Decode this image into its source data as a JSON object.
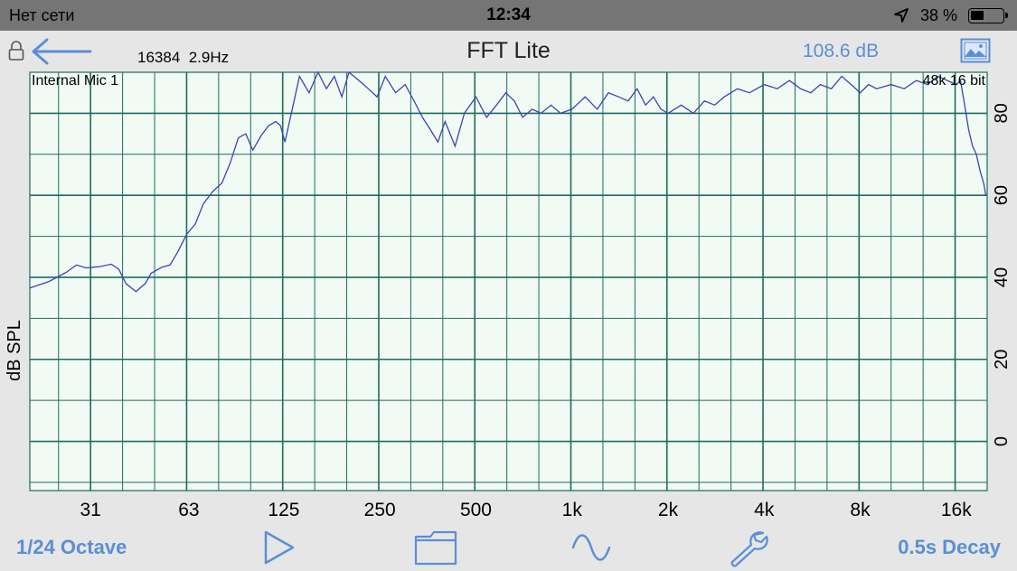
{
  "status_bar": {
    "carrier": "Нет сети",
    "time": "12:34",
    "battery_text": "38 %",
    "icons": [
      "location-arrow-icon",
      "battery-icon"
    ]
  },
  "header": {
    "title": "FFT Lite",
    "fft_info": "16384  2.9Hz",
    "level": "108.6 dB",
    "icons": [
      "lock-icon",
      "back-arrow-icon",
      "image-icon"
    ],
    "accent_color": "#5a8fd6"
  },
  "chart_data": {
    "type": "line",
    "title": "",
    "ylabel": "dB SPL",
    "xlabel": "",
    "x_scale": "log",
    "xlim": [
      20,
      20000
    ],
    "ylim": [
      -12,
      90
    ],
    "x_ticks": [
      31,
      63,
      125,
      250,
      500,
      1000,
      2000,
      4000,
      8000,
      16000
    ],
    "x_tick_labels": [
      "31",
      "63",
      "125",
      "250",
      "500",
      "1k",
      "2k",
      "4k",
      "8k",
      "16k"
    ],
    "y_ticks": [
      0,
      20,
      40,
      60,
      80
    ],
    "y_tick_labels": [
      "0",
      "20",
      "40",
      "60",
      "80"
    ],
    "grid": true,
    "input_label": "Internal Mic 1",
    "format_label": "48k 16 bit",
    "background_color": "#f1fbf4",
    "grid_color": "#1d6b62",
    "line_color": "#3a45b4",
    "series": [
      {
        "x": [
          20,
          23,
          26,
          28,
          30,
          33,
          36,
          38,
          40,
          43,
          46,
          48,
          52,
          55,
          58,
          62,
          66,
          70,
          75,
          80,
          85,
          90,
          95,
          100,
          106,
          112,
          118,
          122,
          126,
          132,
          140,
          150,
          160,
          170,
          180,
          190,
          200,
          215,
          230,
          245,
          260,
          280,
          300,
          320,
          340,
          360,
          380,
          400,
          430,
          460,
          500,
          540,
          580,
          620,
          660,
          700,
          750,
          800,
          860,
          920,
          1000,
          1100,
          1200,
          1300,
          1400,
          1500,
          1600,
          1700,
          1800,
          1900,
          2000,
          2200,
          2400,
          2600,
          2800,
          3000,
          3300,
          3600,
          4000,
          4400,
          4800,
          5200,
          5600,
          6000,
          6500,
          7000,
          7500,
          8000,
          8500,
          9000,
          10000,
          11000,
          12000,
          13000,
          14000,
          15000,
          16000,
          16500,
          17000,
          17500,
          18000,
          18500,
          19000,
          19500,
          19800
        ],
        "y": [
          37.4,
          39,
          41.2,
          43,
          42.3,
          42.6,
          43.2,
          42,
          38.5,
          36.5,
          38.5,
          41,
          42.5,
          43,
          46,
          50.5,
          53,
          58,
          61,
          63,
          68,
          74,
          75,
          71,
          74.5,
          77,
          78,
          77,
          73,
          80,
          89,
          85,
          90,
          86,
          89,
          84,
          90,
          88,
          86,
          84,
          89,
          85,
          87,
          83,
          79,
          76,
          73,
          78,
          72,
          80,
          84,
          79,
          82,
          85,
          83,
          79,
          81,
          80,
          82,
          80,
          81,
          84,
          81,
          85,
          84,
          83,
          86,
          82,
          84,
          81,
          80,
          82,
          80,
          83,
          82,
          84,
          86,
          85,
          87,
          86,
          88,
          86,
          85,
          87,
          86,
          89,
          87,
          85,
          87,
          86,
          87,
          86,
          88,
          87,
          89,
          88,
          87,
          88,
          82,
          76,
          72,
          70,
          66,
          63,
          60
        ]
      }
    ]
  },
  "toolbar": {
    "octave_label": "1/24 Octave",
    "decay_label": "0.5s Decay",
    "icons": [
      "play-icon",
      "folder-icon",
      "sine-wave-icon",
      "wrench-icon"
    ]
  }
}
